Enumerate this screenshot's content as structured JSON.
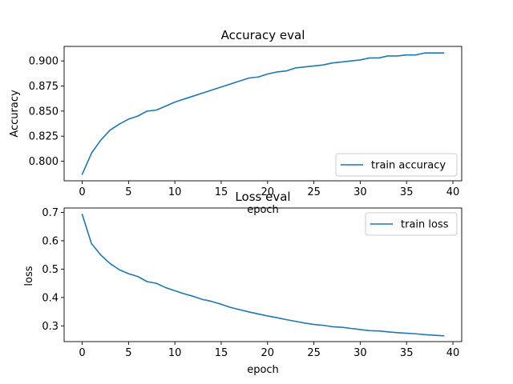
{
  "chart_data": [
    {
      "type": "line",
      "title": "Accuracy eval",
      "xlabel": "epoch",
      "ylabel": "Accuracy",
      "xlim": [
        -1.95,
        40.95
      ],
      "ylim": [
        0.7805,
        0.9145
      ],
      "xticks": [
        0,
        5,
        10,
        15,
        20,
        25,
        30,
        35,
        40
      ],
      "xtick_labels": [
        "0",
        "5",
        "10",
        "15",
        "20",
        "25",
        "30",
        "35",
        "40"
      ],
      "yticks": [
        0.8,
        0.825,
        0.85,
        0.875,
        0.9
      ],
      "ytick_labels": [
        "0.800",
        "0.825",
        "0.850",
        "0.875",
        "0.900"
      ],
      "grid": false,
      "legend_loc": "lower-right",
      "series": [
        {
          "name": "train accuracy",
          "color": "#1f77b4",
          "x": [
            0,
            1,
            2,
            3,
            4,
            5,
            6,
            7,
            8,
            9,
            10,
            11,
            12,
            13,
            14,
            15,
            16,
            17,
            18,
            19,
            20,
            21,
            22,
            23,
            24,
            25,
            26,
            27,
            28,
            29,
            30,
            31,
            32,
            33,
            34,
            35,
            36,
            37,
            38,
            39
          ],
          "values": [
            0.787,
            0.808,
            0.821,
            0.831,
            0.837,
            0.842,
            0.845,
            0.85,
            0.851,
            0.855,
            0.859,
            0.862,
            0.865,
            0.868,
            0.871,
            0.874,
            0.877,
            0.88,
            0.883,
            0.884,
            0.887,
            0.889,
            0.89,
            0.893,
            0.894,
            0.895,
            0.896,
            0.898,
            0.899,
            0.9,
            0.901,
            0.903,
            0.903,
            0.905,
            0.905,
            0.906,
            0.906,
            0.908,
            0.908,
            0.908
          ]
        }
      ]
    },
    {
      "type": "line",
      "title": "Loss eval",
      "xlabel": "epoch",
      "ylabel": "loss",
      "xlim": [
        -1.95,
        40.95
      ],
      "ylim": [
        0.2445,
        0.7155
      ],
      "xticks": [
        0,
        5,
        10,
        15,
        20,
        25,
        30,
        35,
        40
      ],
      "xtick_labels": [
        "0",
        "5",
        "10",
        "15",
        "20",
        "25",
        "30",
        "35",
        "40"
      ],
      "yticks": [
        0.3,
        0.4,
        0.5,
        0.6,
        0.7
      ],
      "ytick_labels": [
        "0.3",
        "0.4",
        "0.5",
        "0.6",
        "0.7"
      ],
      "grid": false,
      "legend_loc": "upper-right",
      "series": [
        {
          "name": "train loss",
          "color": "#1f77b4",
          "x": [
            0,
            1,
            2,
            3,
            4,
            5,
            6,
            7,
            8,
            9,
            10,
            11,
            12,
            13,
            14,
            15,
            16,
            17,
            18,
            19,
            20,
            21,
            22,
            23,
            24,
            25,
            26,
            27,
            28,
            29,
            30,
            31,
            32,
            33,
            34,
            35,
            36,
            37,
            38,
            39
          ],
          "values": [
            0.693,
            0.59,
            0.55,
            0.52,
            0.498,
            0.484,
            0.474,
            0.456,
            0.45,
            0.435,
            0.424,
            0.413,
            0.404,
            0.393,
            0.386,
            0.376,
            0.365,
            0.357,
            0.349,
            0.342,
            0.335,
            0.329,
            0.322,
            0.316,
            0.31,
            0.305,
            0.302,
            0.297,
            0.295,
            0.291,
            0.287,
            0.283,
            0.282,
            0.279,
            0.276,
            0.274,
            0.272,
            0.269,
            0.267,
            0.265
          ]
        }
      ]
    }
  ]
}
